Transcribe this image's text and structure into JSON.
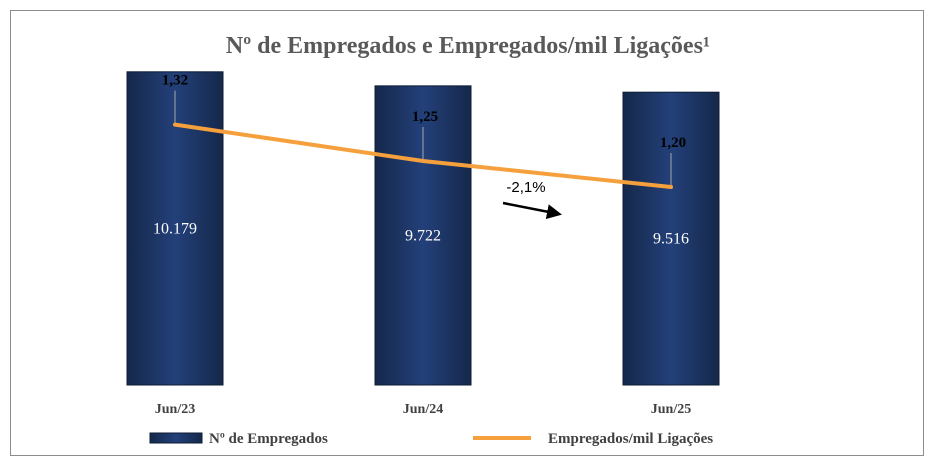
{
  "chart_data": {
    "type": "bar",
    "title": "Nº de Empregados e Empregados/mil Ligações¹",
    "categories": [
      "Jun/23",
      "Jun/24",
      "Jun/25"
    ],
    "series": [
      {
        "name": "Nº de Empregados",
        "type": "bar",
        "values": [
          10179,
          9722,
          9516
        ],
        "labels": [
          "10.179",
          "9.722",
          "9.516"
        ],
        "color": "#1f3864"
      },
      {
        "name": "Empregados/mil Ligações",
        "type": "line",
        "values": [
          1.32,
          1.25,
          1.2
        ],
        "labels": [
          "1,32",
          "1,25",
          "1,20"
        ],
        "color": "#f5a03c"
      }
    ],
    "annotation": "-2,1%",
    "legend": "bottom",
    "grid": false
  }
}
